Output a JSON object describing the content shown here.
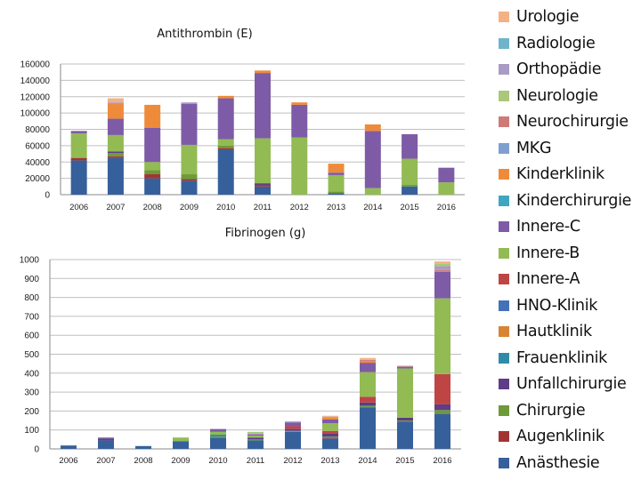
{
  "legend": [
    {
      "name": "Urologie",
      "color": "#F4B183"
    },
    {
      "name": "Radiologie",
      "color": "#70B4CC"
    },
    {
      "name": "Orthopädie",
      "color": "#A99BC4"
    },
    {
      "name": "Neurologie",
      "color": "#ABC77A"
    },
    {
      "name": "Neurochirurgie",
      "color": "#D07A78"
    },
    {
      "name": "MKG",
      "color": "#7F9FCF"
    },
    {
      "name": "Kinderklinik",
      "color": "#EE8B3A"
    },
    {
      "name": "Kinderchirurgie",
      "color": "#3FA6C0"
    },
    {
      "name": "Innere-C",
      "color": "#7E5BA6"
    },
    {
      "name": "Innere-B",
      "color": "#92BB54"
    },
    {
      "name": "Innere-A",
      "color": "#BF4545"
    },
    {
      "name": "HNO-Klinik",
      "color": "#4472B8"
    },
    {
      "name": "Hautklinik",
      "color": "#D88433"
    },
    {
      "name": "Frauenklinik",
      "color": "#2F8CA8"
    },
    {
      "name": "Unfallchirurgie",
      "color": "#5E3D86"
    },
    {
      "name": "Chirurgie",
      "color": "#6F9A3A"
    },
    {
      "name": "Augenklinik",
      "color": "#A33434"
    },
    {
      "name": "Anästhesie",
      "color": "#36609C"
    }
  ],
  "chart_data": [
    {
      "type": "bar",
      "stacked": true,
      "title": "Antithrombin (E)",
      "xlabel": "",
      "ylabel": "",
      "ylim": [
        0,
        160000
      ],
      "yticks": [
        0,
        20000,
        40000,
        60000,
        80000,
        100000,
        120000,
        140000,
        160000
      ],
      "grid": true,
      "categories": [
        "2006",
        "2007",
        "2008",
        "2009",
        "2010",
        "2011",
        "2012",
        "2013",
        "2014",
        "2015",
        "2016"
      ],
      "series": [
        {
          "name": "Anästhesie",
          "values": [
            42000,
            45000,
            20000,
            17000,
            55000,
            10000,
            0,
            2000,
            0,
            10000,
            0
          ]
        },
        {
          "name": "Augenklinik",
          "values": [
            3000,
            2000,
            5000,
            2000,
            2000,
            2000,
            0,
            0,
            0,
            0,
            0
          ]
        },
        {
          "name": "Chirurgie",
          "values": [
            0,
            4000,
            5000,
            6000,
            3000,
            0,
            0,
            2000,
            0,
            2000,
            0
          ]
        },
        {
          "name": "Unfallchirurgie",
          "values": [
            0,
            2000,
            0,
            0,
            0,
            2000,
            0,
            0,
            0,
            0,
            0
          ]
        },
        {
          "name": "Innere-A",
          "values": [
            0,
            0,
            0,
            0,
            0,
            0,
            0,
            0,
            0,
            0,
            0
          ]
        },
        {
          "name": "Innere-B",
          "values": [
            30000,
            20000,
            10000,
            36000,
            8000,
            55000,
            70000,
            20000,
            8000,
            32000,
            15000
          ]
        },
        {
          "name": "Innere-C",
          "values": [
            3000,
            20000,
            42000,
            50000,
            50000,
            80000,
            40000,
            3000,
            70000,
            30000,
            18000
          ]
        },
        {
          "name": "Kinderklinik",
          "values": [
            0,
            18000,
            28000,
            0,
            3000,
            3000,
            3000,
            11000,
            8000,
            0,
            0
          ]
        },
        {
          "name": "Orthopädie",
          "values": [
            0,
            2000,
            0,
            2000,
            0,
            0,
            0,
            0,
            0,
            0,
            0
          ]
        },
        {
          "name": "Urologie",
          "values": [
            0,
            5000,
            0,
            0,
            0,
            0,
            0,
            0,
            0,
            0,
            0
          ]
        }
      ]
    },
    {
      "type": "bar",
      "stacked": true,
      "title": "Fibrinogen (g)",
      "xlabel": "",
      "ylabel": "",
      "ylim": [
        0,
        1000
      ],
      "yticks": [
        0,
        100,
        200,
        300,
        400,
        500,
        600,
        700,
        800,
        900,
        1000
      ],
      "grid": true,
      "categories": [
        "2006",
        "2007",
        "2008",
        "2009",
        "2010",
        "2011",
        "2012",
        "2013",
        "2014",
        "2015",
        "2016"
      ],
      "series": [
        {
          "name": "Anästhesie",
          "values": [
            18,
            45,
            15,
            40,
            60,
            45,
            90,
            55,
            220,
            145,
            185
          ]
        },
        {
          "name": "Augenklinik",
          "values": [
            0,
            0,
            0,
            0,
            0,
            0,
            0,
            5,
            0,
            0,
            0
          ]
        },
        {
          "name": "Chirurgie",
          "values": [
            0,
            0,
            0,
            0,
            5,
            5,
            5,
            5,
            5,
            5,
            20
          ]
        },
        {
          "name": "Frauenklinik",
          "values": [
            0,
            0,
            0,
            0,
            10,
            0,
            0,
            0,
            5,
            0,
            0
          ]
        },
        {
          "name": "Unfallchirurgie",
          "values": [
            0,
            10,
            0,
            0,
            0,
            10,
            10,
            15,
            15,
            15,
            30
          ]
        },
        {
          "name": "Innere-A",
          "values": [
            0,
            0,
            0,
            0,
            0,
            0,
            15,
            15,
            30,
            0,
            160
          ]
        },
        {
          "name": "Innere-B",
          "values": [
            0,
            0,
            0,
            20,
            15,
            10,
            0,
            40,
            130,
            260,
            400
          ]
        },
        {
          "name": "Innere-C",
          "values": [
            0,
            5,
            0,
            0,
            15,
            5,
            20,
            20,
            50,
            10,
            140
          ]
        },
        {
          "name": "Kinderklinik",
          "values": [
            0,
            0,
            0,
            0,
            0,
            0,
            0,
            10,
            10,
            0,
            0
          ]
        },
        {
          "name": "Neurochirurgie",
          "values": [
            0,
            0,
            0,
            0,
            0,
            0,
            0,
            0,
            5,
            0,
            10
          ]
        },
        {
          "name": "Orthopädie",
          "values": [
            0,
            0,
            0,
            0,
            0,
            5,
            5,
            5,
            0,
            0,
            20
          ]
        },
        {
          "name": "Neurologie",
          "values": [
            0,
            0,
            0,
            0,
            0,
            10,
            0,
            0,
            0,
            0,
            15
          ]
        },
        {
          "name": "Urologie",
          "values": [
            0,
            0,
            0,
            0,
            0,
            0,
            0,
            5,
            10,
            5,
            10
          ]
        }
      ]
    }
  ]
}
